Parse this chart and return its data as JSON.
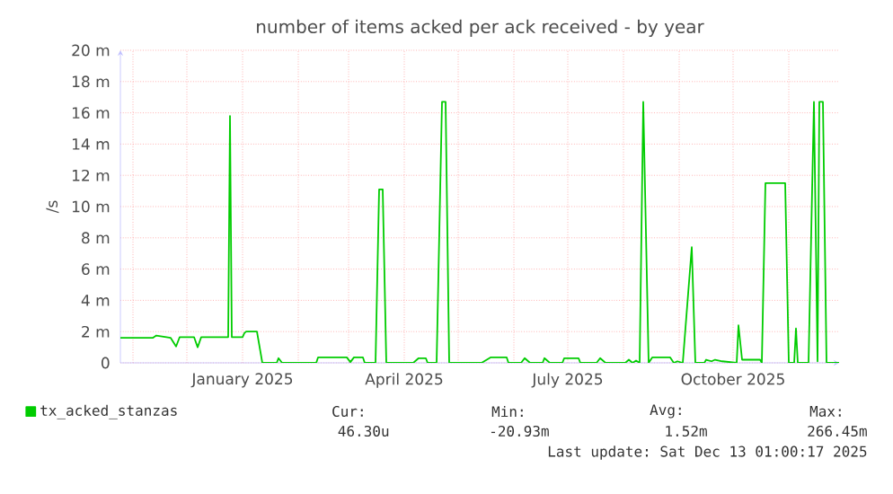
{
  "chart_data": {
    "type": "line",
    "title": "number of items acked per ack received - by year",
    "ylabel": "/s",
    "xlim": [
      "2024-10-25",
      "2025-11-29"
    ],
    "xticks": [
      {
        "value": "2024-11-01",
        "label": null
      },
      {
        "value": "2024-12-01",
        "label": null
      },
      {
        "value": "2025-01-01",
        "label": "January 2025"
      },
      {
        "value": "2025-02-01",
        "label": null
      },
      {
        "value": "2025-03-01",
        "label": null
      },
      {
        "value": "2025-04-01",
        "label": "April 2025"
      },
      {
        "value": "2025-05-01",
        "label": null
      },
      {
        "value": "2025-06-01",
        "label": null
      },
      {
        "value": "2025-07-01",
        "label": "July 2025"
      },
      {
        "value": "2025-08-01",
        "label": null
      },
      {
        "value": "2025-09-01",
        "label": null
      },
      {
        "value": "2025-10-01",
        "label": "October 2025"
      },
      {
        "value": "2025-11-01",
        "label": null
      }
    ],
    "ylim": [
      0,
      20
    ],
    "yticks": [
      0,
      {
        "value": 2,
        "label": "2 m"
      },
      {
        "value": 4,
        "label": "4 m"
      },
      {
        "value": 6,
        "label": "6 m"
      },
      {
        "value": 8,
        "label": "8 m"
      },
      {
        "value": 10,
        "label": "10 m"
      },
      {
        "value": 12,
        "label": "12 m"
      },
      {
        "value": 14,
        "label": "14 m"
      },
      {
        "value": 16,
        "label": "16 m"
      },
      {
        "value": 18,
        "label": "18 m"
      },
      {
        "value": 20,
        "label": "20 m"
      }
    ],
    "grid": true,
    "legend": "bottom left",
    "series": [
      {
        "name": "tx_acked_stanzas",
        "color": "#00cc00",
        "x": [
          "2024-10-25",
          "2024-11-12",
          "2024-11-14",
          "2024-11-22",
          "2024-11-25",
          "2024-11-27",
          "2024-12-05",
          "2024-12-07",
          "2024-12-09",
          "2024-12-24",
          "2024-12-25",
          "2024-12-26",
          "2025-01-01",
          "2025-01-02",
          "2025-01-03",
          "2025-01-09",
          "2025-01-12",
          "2025-01-20",
          "2025-01-21",
          "2025-01-23",
          "2025-02-11",
          "2025-02-12",
          "2025-02-28",
          "2025-03-02",
          "2025-03-04",
          "2025-03-09",
          "2025-03-10",
          "2025-03-16",
          "2025-03-18",
          "2025-03-20",
          "2025-03-22",
          "2025-04-06",
          "2025-04-09",
          "2025-04-13",
          "2025-04-14",
          "2025-04-19",
          "2025-04-22",
          "2025-04-24",
          "2025-04-26",
          "2025-05-14",
          "2025-05-19",
          "2025-05-28",
          "2025-05-29",
          "2025-06-05",
          "2025-06-07",
          "2025-06-10",
          "2025-06-17",
          "2025-06-18",
          "2025-06-21",
          "2025-06-28",
          "2025-06-29",
          "2025-07-07",
          "2025-07-08",
          "2025-07-17",
          "2025-07-19",
          "2025-07-22",
          "2025-08-02",
          "2025-08-04",
          "2025-08-06",
          "2025-08-08",
          "2025-08-10",
          "2025-08-12",
          "2025-08-15",
          "2025-08-17",
          "2025-08-27",
          "2025-08-29",
          "2025-08-31",
          "2025-09-03",
          "2025-09-08",
          "2025-09-10",
          "2025-09-15",
          "2025-09-16",
          "2025-09-19",
          "2025-09-21",
          "2025-09-25",
          "2025-10-03",
          "2025-10-04",
          "2025-10-06",
          "2025-10-16",
          "2025-10-17",
          "2025-10-19",
          "2025-10-30",
          "2025-11-01",
          "2025-11-04",
          "2025-11-05",
          "2025-11-06",
          "2025-11-12",
          "2025-11-15",
          "2025-11-17",
          "2025-11-18",
          "2025-11-20",
          "2025-11-22",
          "2025-11-29"
        ],
        "values": [
          1.6,
          1.6,
          1.75,
          1.6,
          1.05,
          1.65,
          1.65,
          1.0,
          1.65,
          1.65,
          15.8,
          1.65,
          1.65,
          1.9,
          2.0,
          2.0,
          0,
          0,
          0.3,
          0,
          0,
          0.35,
          0.35,
          0.05,
          0.35,
          0.35,
          0,
          0,
          11.1,
          11.1,
          0,
          0,
          0.3,
          0.3,
          0,
          0,
          16.7,
          16.7,
          0,
          0,
          0.35,
          0.35,
          0,
          0,
          0.3,
          0,
          0,
          0.3,
          0,
          0,
          0.3,
          0.3,
          0,
          0,
          0.3,
          0,
          0,
          0.2,
          0,
          0.15,
          0,
          16.7,
          0,
          0.35,
          0.35,
          0,
          0.1,
          0,
          7.4,
          0,
          0,
          0.2,
          0.1,
          0.2,
          0.1,
          0,
          2.4,
          0.2,
          0.2,
          0,
          11.5,
          11.5,
          0,
          0,
          2.2,
          0,
          0,
          16.7,
          0.1,
          16.7,
          16.7,
          0,
          0
        ]
      }
    ],
    "annotations": [
      "Cur:",
      "Min:",
      "Avg:",
      "Max:",
      "46.30u",
      "-20.93m",
      "1.52m",
      "266.45m",
      "Last update: Sat Dec 13 01:00:17 2025"
    ]
  }
}
